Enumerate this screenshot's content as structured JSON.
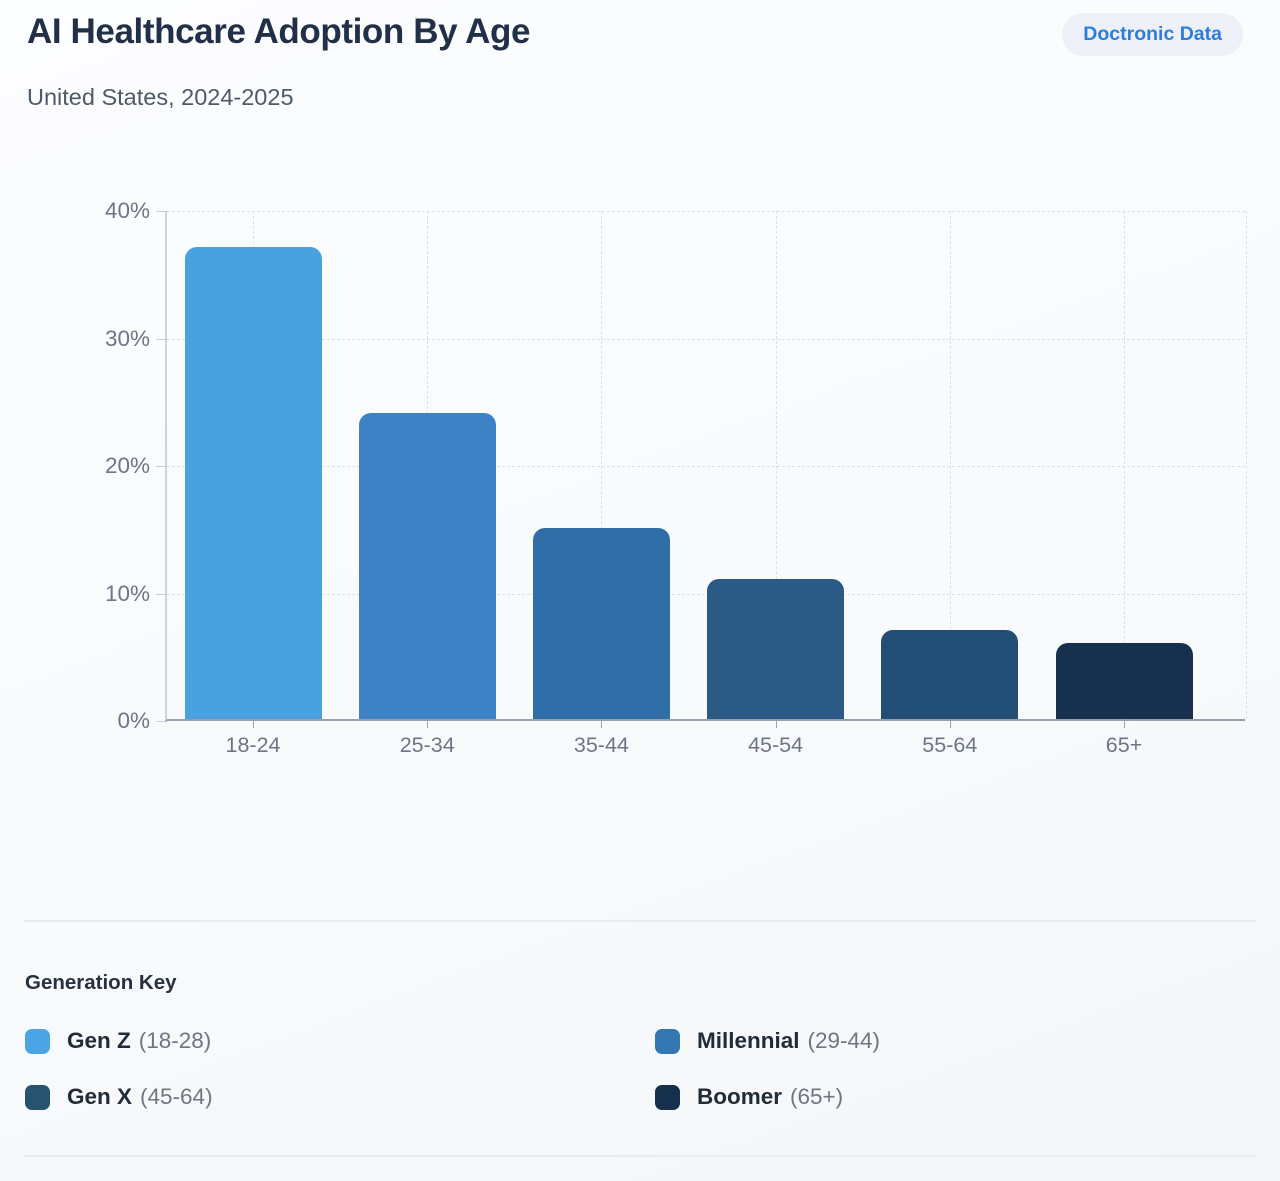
{
  "header": {
    "title": "AI Healthcare Adoption By Age",
    "subtitle": "United States, 2024-2025",
    "badge": "Doctronic Data"
  },
  "chart_data": {
    "type": "bar",
    "title": "AI Healthcare Adoption By Age",
    "subtitle": "United States, 2024-2025",
    "categories": [
      "18-24",
      "25-34",
      "35-44",
      "45-54",
      "55-64",
      "65+"
    ],
    "values": [
      37,
      24,
      15,
      11,
      7,
      6
    ],
    "unit": "%",
    "xlabel": "",
    "ylabel": "",
    "ylim": [
      0,
      40
    ],
    "yticks": [
      0,
      10,
      20,
      30,
      40
    ],
    "ytick_labels": [
      "0%",
      "10%",
      "20%",
      "30%",
      "40%"
    ],
    "grid": "dashed, horizontal at each ytick and vertical at each bar center",
    "legend_position": "bottom",
    "bar_colors": [
      "#49a1e0",
      "#3c82c4",
      "#2f6ea6",
      "#2a5a85",
      "#224d74",
      "#16304e"
    ]
  },
  "legend": {
    "heading": "Generation Key",
    "items": [
      {
        "name": "Gen Z",
        "range": "(18-28)",
        "color": "#4ba5e5"
      },
      {
        "name": "Millennial",
        "range": "(29-44)",
        "color": "#3377b2"
      },
      {
        "name": "Gen X",
        "range": "(45-64)",
        "color": "#27536f"
      },
      {
        "name": "Boomer",
        "range": "(65+)",
        "color": "#152f4c"
      }
    ]
  },
  "colors": {
    "accent_blue": "#2e7ddb",
    "title_text": "#223047",
    "muted_text": "#6c7685",
    "badge_background": "#edf1f7"
  }
}
